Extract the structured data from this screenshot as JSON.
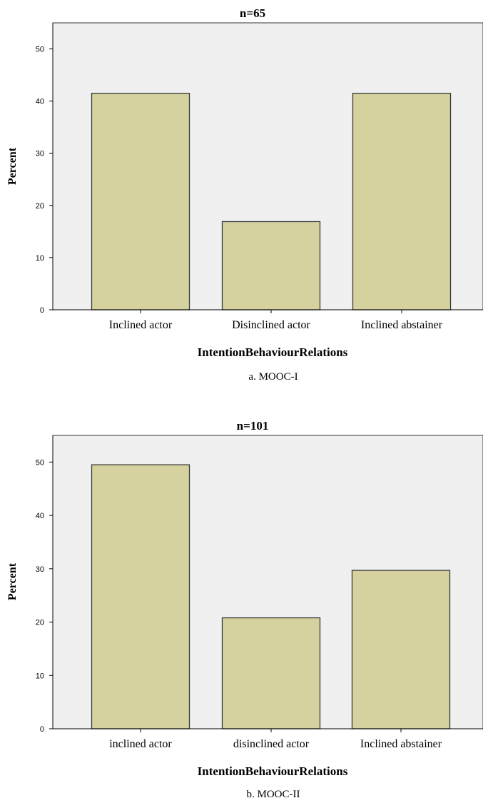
{
  "chart_data": [
    {
      "type": "bar",
      "title": "n=65",
      "categories": [
        "Inclined actor",
        "Disinclined actor",
        "Inclined abstainer"
      ],
      "values": [
        41.5,
        16.9,
        41.5
      ],
      "xlabel": "IntentionBehaviourRelations",
      "ylabel": "Percent",
      "caption": "a. MOOC-I",
      "ylim": [
        0,
        55
      ],
      "yticks": [
        0,
        10,
        20,
        30,
        40,
        50
      ],
      "grid": false,
      "legend": "none",
      "colors": {
        "bar": "#d5d29f",
        "bar_edge": "#3a3a3a",
        "plot_bg": "#f0f0f0"
      }
    },
    {
      "type": "bar",
      "title": "n=101",
      "categories": [
        "inclined actor",
        "disinclined actor",
        "Inclined abstainer"
      ],
      "values": [
        49.5,
        20.8,
        29.7
      ],
      "xlabel": "IntentionBehaviourRelations",
      "ylabel": "Percent",
      "caption": "b. MOOC-II",
      "ylim": [
        0,
        55
      ],
      "yticks": [
        0,
        10,
        20,
        30,
        40,
        50
      ],
      "grid": false,
      "legend": "none",
      "colors": {
        "bar": "#d5d29f",
        "bar_edge": "#3a3a3a",
        "plot_bg": "#f0f0f0"
      }
    }
  ]
}
